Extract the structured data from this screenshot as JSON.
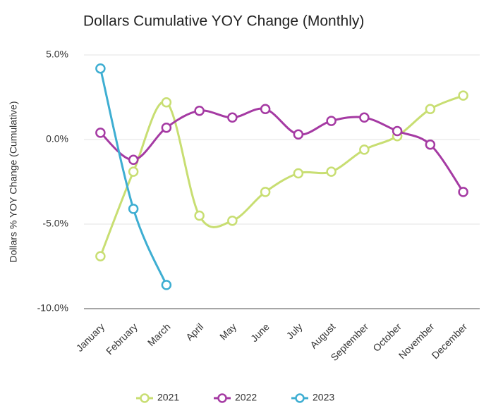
{
  "chart_data": {
    "type": "line",
    "title": "Dollars Cumulative YOY Change (Monthly)",
    "y_label": "Dollars % YOY Change (Cumulative)",
    "categories": [
      "January",
      "February",
      "March",
      "April",
      "May",
      "June",
      "July",
      "August",
      "September",
      "October",
      "November",
      "December"
    ],
    "series": [
      {
        "name": "2021",
        "color": "#c8de72",
        "values": [
          -6.9,
          -1.9,
          2.2,
          -4.5,
          -4.8,
          -3.1,
          -2.0,
          -1.9,
          -0.6,
          0.2,
          1.8,
          2.6
        ]
      },
      {
        "name": "2022",
        "color": "#a53aa3",
        "values": [
          0.4,
          -1.2,
          0.7,
          1.7,
          1.3,
          1.8,
          0.3,
          1.1,
          1.3,
          0.5,
          -0.3,
          -3.1
        ]
      },
      {
        "name": "2023",
        "color": "#3eaed2",
        "values": [
          4.2,
          -4.1,
          -8.6,
          null,
          null,
          null,
          null,
          null,
          null,
          null,
          null,
          null
        ]
      }
    ],
    "ylim": [
      -10,
      5
    ],
    "yticks": [
      {
        "value": -10,
        "label": "-10.0%"
      },
      {
        "value": -5,
        "label": "-5.0%"
      },
      {
        "value": 0,
        "label": "0.0%"
      },
      {
        "value": 5,
        "label": "5.0%"
      }
    ],
    "grid": true,
    "legend": "bottom"
  }
}
